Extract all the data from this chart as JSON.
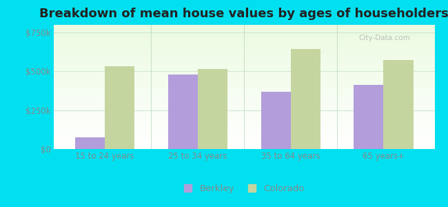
{
  "title": "Breakdown of mean house values by ages of householders",
  "categories": [
    "15 to 24 years",
    "25 to 34 years",
    "35 to 64 years",
    "65 years+"
  ],
  "berkley_values": [
    75000,
    480000,
    370000,
    415000
  ],
  "colorado_values": [
    535000,
    515000,
    645000,
    575000
  ],
  "berkley_color": "#b39ddb",
  "colorado_color": "#c5d5a0",
  "background_color": "#00e0f0",
  "ytick_labels": [
    "$0",
    "$250k",
    "$500k",
    "$750k"
  ],
  "ytick_values": [
    0,
    250000,
    500000,
    750000
  ],
  "ylim": [
    0,
    800000
  ],
  "bar_width": 0.32,
  "legend_labels": [
    "Berkley",
    "Colorado"
  ],
  "title_fontsize": 13,
  "tick_fontsize": 8.5,
  "legend_fontsize": 9.5,
  "watermark": "City-Data.com",
  "plot_bg_color_bottom": "#e8f5e9",
  "plot_bg_color_top": "#f0faf0",
  "separator_color": "#aaccaa",
  "grid_color": "#d0e8d0",
  "tick_color": "#888888",
  "title_color": "#222222"
}
